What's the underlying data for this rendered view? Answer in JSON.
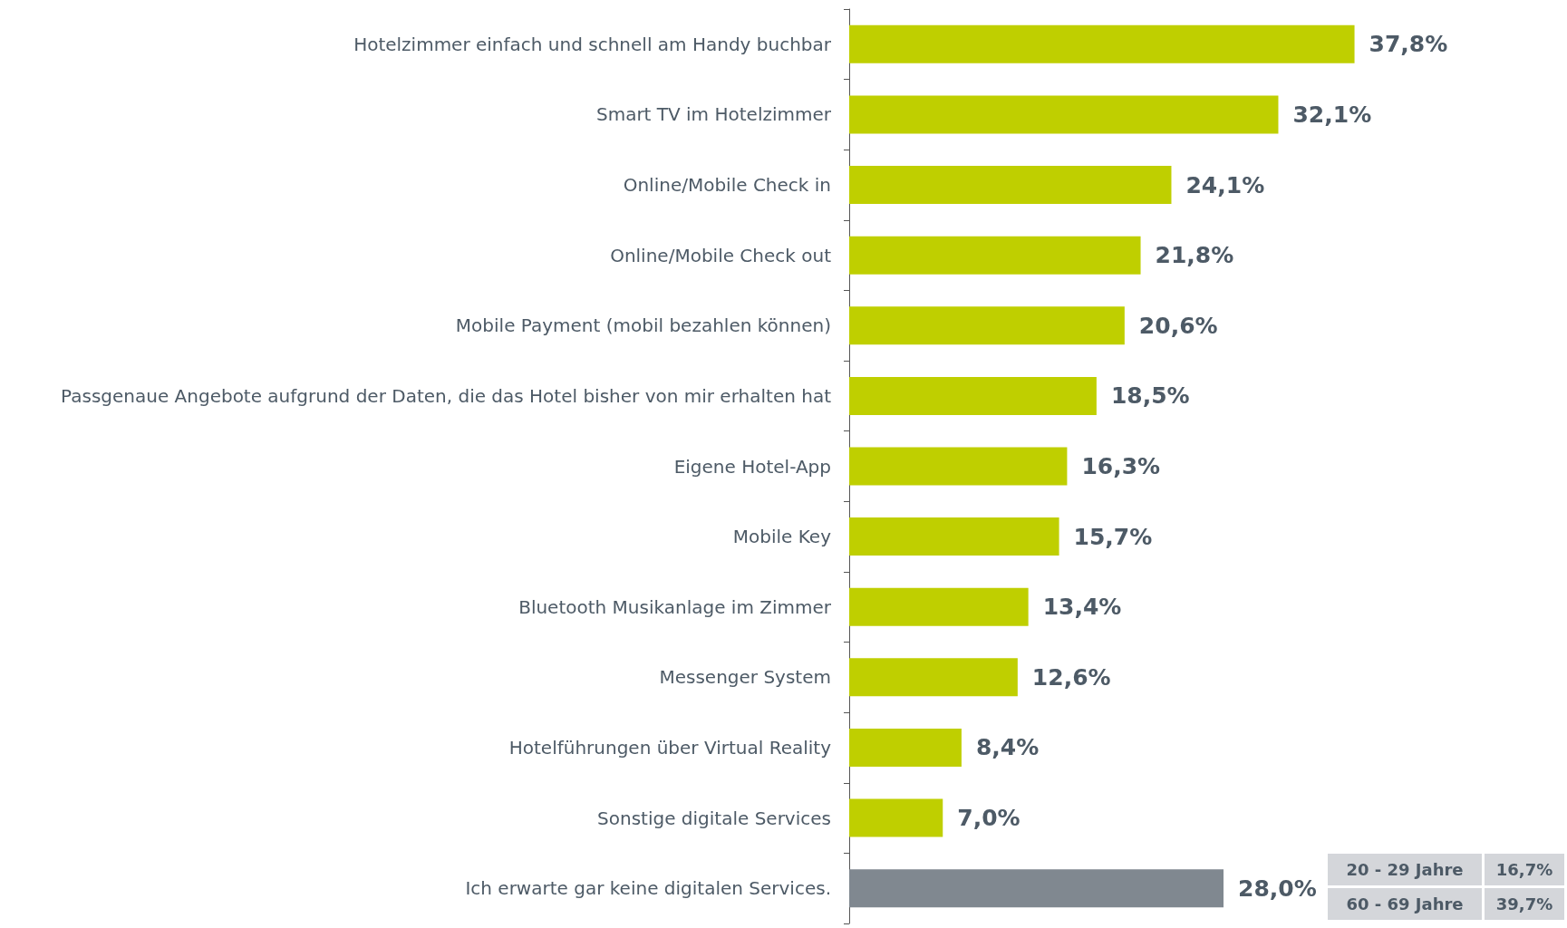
{
  "chart_data": {
    "type": "bar",
    "orientation": "horizontal",
    "categories": [
      "Hotelzimmer einfach und schnell am Handy buchbar",
      "Smart TV im Hotelzimmer",
      "Online/Mobile Check in",
      "Online/Mobile Check out",
      "Mobile Payment (mobil bezahlen können)",
      "Passgenaue Angebote aufgrund der Daten, die das Hotel bisher von mir erhalten hat",
      "Eigene Hotel-App",
      "Mobile Key",
      "Bluetooth Musikanlage im Zimmer",
      "Messenger System",
      "Hotelführungen über Virtual Reality",
      "Sonstige digitale Services",
      "Ich erwarte gar keine digitalen Services."
    ],
    "values": [
      37.8,
      32.1,
      24.1,
      21.8,
      20.6,
      18.5,
      16.3,
      15.7,
      13.4,
      12.6,
      8.4,
      7.0,
      28.0
    ],
    "value_labels": [
      "37,8%",
      "32,1%",
      "24,1%",
      "21,8%",
      "20,6%",
      "18,5%",
      "16,3%",
      "15,7%",
      "13,4%",
      "12,6%",
      "8,4%",
      "7,0%",
      "28,0%"
    ],
    "colors": [
      "#bfcf00",
      "#bfcf00",
      "#bfcf00",
      "#bfcf00",
      "#bfcf00",
      "#bfcf00",
      "#bfcf00",
      "#bfcf00",
      "#bfcf00",
      "#bfcf00",
      "#bfcf00",
      "#bfcf00",
      "#808890"
    ],
    "annotations": [
      "20 - 29 Jahre",
      "16,7%",
      "60 - 69 Jahre",
      "39,7%"
    ],
    "tick_labels": "y"
  }
}
